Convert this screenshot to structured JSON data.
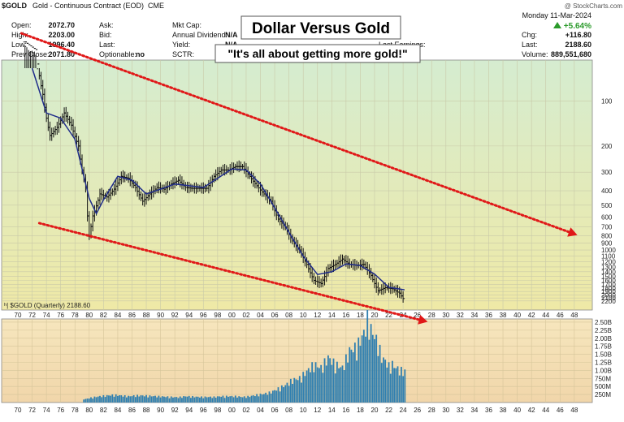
{
  "header": {
    "symbol": "$GOLD",
    "description": "Gold - Continuous Contract (EOD)",
    "exchange": "CME",
    "watermark": "@ StockCharts.com",
    "date_line": "Monday   11-Mar-2024",
    "change_pct": "+5.64%",
    "fields_left": [
      {
        "label": "Open:",
        "value": "2072.70"
      },
      {
        "label": "High:",
        "value": "2203.00"
      },
      {
        "label": "Low:",
        "value": "1996.40"
      },
      {
        "label": "Prev Close:",
        "value": "2071.80"
      }
    ],
    "fields_mid": [
      {
        "label": "Ask:",
        "value": ""
      },
      {
        "label": "Bid:",
        "value": ""
      },
      {
        "label": "Last:",
        "value": ""
      },
      {
        "label": "Optionable:",
        "value": "no"
      }
    ],
    "fields_mid2": [
      {
        "label": "Mkt Cap:",
        "value": ""
      },
      {
        "label": "Annual Dividend:",
        "value": "N/A"
      },
      {
        "label": "Yield:",
        "value": "N/A"
      },
      {
        "label": "SCTR:",
        "value": ""
      }
    ],
    "last_earnings_label": "Last Earnings:",
    "fields_right": [
      {
        "label": "Chg:",
        "value": "+116.80"
      },
      {
        "label": "Last:",
        "value": "2188.60"
      },
      {
        "label": "Volume:",
        "value": "889,551,680"
      }
    ]
  },
  "title_box": "Dollar Versus Gold",
  "subtitle_box": "\"It's all about getting more gold!\"",
  "legend_label": "$GOLD (Quarterly) 2188.60",
  "colors": {
    "price_bg_top": "#d5ecd0",
    "price_bg_bottom": "#efe9a6",
    "volume_bg_top": "#f6e6bd",
    "volume_bg_bottom": "#f1d6aa",
    "price_bar": "#111111",
    "moving_average": "#1f2c8a",
    "volume_bar": "#2f7fb0",
    "trend_arrow": "#e01818",
    "up_arrow": "#2a9a2a"
  },
  "chart_data": [
    {
      "type": "bar",
      "subtype": "ohlc-quarterly",
      "scale": "inverted-log",
      "legend": "$GOLD (Quarterly) 2188.60",
      "x_ticks": [
        "70",
        "72",
        "74",
        "76",
        "78",
        "80",
        "82",
        "84",
        "86",
        "88",
        "90",
        "92",
        "94",
        "96",
        "98",
        "00",
        "02",
        "04",
        "06",
        "08",
        "10",
        "12",
        "14",
        "16",
        "18",
        "20",
        "22",
        "24",
        "26",
        "28",
        "30",
        "32",
        "34",
        "36",
        "38",
        "40",
        "42",
        "44",
        "46",
        "48"
      ],
      "y_ticks": [
        100,
        200,
        300,
        400,
        500,
        600,
        700,
        800,
        900,
        1000,
        1100,
        1200,
        1300,
        1400,
        1500,
        1600,
        1700,
        1800,
        1900,
        2000,
        2100,
        2200
      ],
      "ylim": [
        60,
        2260
      ],
      "grid": true,
      "price_points": [
        {
          "x": 1971.0,
          "y": 40
        },
        {
          "x": 1972.5,
          "y": 45
        },
        {
          "x": 1973.5,
          "y": 90
        },
        {
          "x": 1974.5,
          "y": 170
        },
        {
          "x": 1975.5,
          "y": 150
        },
        {
          "x": 1976.5,
          "y": 120
        },
        {
          "x": 1977.5,
          "y": 145
        },
        {
          "x": 1978.5,
          "y": 200
        },
        {
          "x": 1979.5,
          "y": 380
        },
        {
          "x": 1980.0,
          "y": 800
        },
        {
          "x": 1980.5,
          "y": 590
        },
        {
          "x": 1981.5,
          "y": 420
        },
        {
          "x": 1982.5,
          "y": 440
        },
        {
          "x": 1983.5,
          "y": 390
        },
        {
          "x": 1984.5,
          "y": 320
        },
        {
          "x": 1985.5,
          "y": 330
        },
        {
          "x": 1986.5,
          "y": 380
        },
        {
          "x": 1987.5,
          "y": 470
        },
        {
          "x": 1988.5,
          "y": 420
        },
        {
          "x": 1989.5,
          "y": 380
        },
        {
          "x": 1990.5,
          "y": 390
        },
        {
          "x": 1991.5,
          "y": 360
        },
        {
          "x": 1992.5,
          "y": 340
        },
        {
          "x": 1993.5,
          "y": 380
        },
        {
          "x": 1994.5,
          "y": 385
        },
        {
          "x": 1995.5,
          "y": 385
        },
        {
          "x": 1996.5,
          "y": 385
        },
        {
          "x": 1997.5,
          "y": 320
        },
        {
          "x": 1998.5,
          "y": 290
        },
        {
          "x": 1999.5,
          "y": 290
        },
        {
          "x": 2000.5,
          "y": 275
        },
        {
          "x": 2001.5,
          "y": 275
        },
        {
          "x": 2002.5,
          "y": 320
        },
        {
          "x": 2003.5,
          "y": 370
        },
        {
          "x": 2004.5,
          "y": 420
        },
        {
          "x": 2005.5,
          "y": 470
        },
        {
          "x": 2006.5,
          "y": 620
        },
        {
          "x": 2007.5,
          "y": 700
        },
        {
          "x": 2008.5,
          "y": 870
        },
        {
          "x": 2009.5,
          "y": 1000
        },
        {
          "x": 2010.5,
          "y": 1250
        },
        {
          "x": 2011.5,
          "y": 1600
        },
        {
          "x": 2012.5,
          "y": 1680
        },
        {
          "x": 2013.5,
          "y": 1330
        },
        {
          "x": 2014.5,
          "y": 1250
        },
        {
          "x": 2015.5,
          "y": 1150
        },
        {
          "x": 2016.5,
          "y": 1250
        },
        {
          "x": 2017.5,
          "y": 1270
        },
        {
          "x": 2018.5,
          "y": 1250
        },
        {
          "x": 2019.5,
          "y": 1480
        },
        {
          "x": 2020.5,
          "y": 1880
        },
        {
          "x": 2021.5,
          "y": 1790
        },
        {
          "x": 2022.5,
          "y": 1820
        },
        {
          "x": 2023.5,
          "y": 1950
        },
        {
          "x": 2024.2,
          "y": 2188.6
        }
      ],
      "moving_average": [
        {
          "x": 1972.0,
          "y": 60
        },
        {
          "x": 1974.0,
          "y": 120
        },
        {
          "x": 1976.0,
          "y": 130
        },
        {
          "x": 1978.0,
          "y": 180
        },
        {
          "x": 1980.0,
          "y": 450
        },
        {
          "x": 1981.0,
          "y": 570
        },
        {
          "x": 1982.0,
          "y": 460
        },
        {
          "x": 1984.0,
          "y": 320
        },
        {
          "x": 1986.0,
          "y": 340
        },
        {
          "x": 1988.0,
          "y": 420
        },
        {
          "x": 1990.0,
          "y": 390
        },
        {
          "x": 1992.0,
          "y": 360
        },
        {
          "x": 1994.0,
          "y": 370
        },
        {
          "x": 1996.0,
          "y": 380
        },
        {
          "x": 1998.0,
          "y": 330
        },
        {
          "x": 2000.0,
          "y": 285
        },
        {
          "x": 2002.0,
          "y": 290
        },
        {
          "x": 2004.0,
          "y": 360
        },
        {
          "x": 2006.0,
          "y": 520
        },
        {
          "x": 2008.0,
          "y": 760
        },
        {
          "x": 2010.0,
          "y": 1100
        },
        {
          "x": 2012.0,
          "y": 1460
        },
        {
          "x": 2014.0,
          "y": 1400
        },
        {
          "x": 2016.0,
          "y": 1240
        },
        {
          "x": 2018.0,
          "y": 1270
        },
        {
          "x": 2020.0,
          "y": 1450
        },
        {
          "x": 2022.0,
          "y": 1780
        },
        {
          "x": 2024.2,
          "y": 1850
        }
      ],
      "trend_lines": [
        {
          "from": {
            "x": 1970.5,
            "y": 35
          },
          "to": {
            "x": 2048,
            "y": 780
          }
        },
        {
          "from": {
            "x": 1973.0,
            "y": 660
          },
          "to": {
            "x": 2027,
            "y": 3000
          }
        }
      ]
    },
    {
      "type": "bar",
      "subtype": "volume",
      "y_ticks": [
        "250M",
        "500M",
        "750M",
        "1.00B",
        "1.25B",
        "1.50B",
        "1.75B",
        "2.00B",
        "2.25B",
        "2.50B"
      ],
      "ylim": [
        0,
        2.55
      ],
      "unit": "billions",
      "x_ticks": [
        "70",
        "72",
        "74",
        "76",
        "78",
        "80",
        "82",
        "84",
        "86",
        "88",
        "90",
        "92",
        "94",
        "96",
        "98",
        "00",
        "02",
        "04",
        "06",
        "08",
        "10",
        "12",
        "14",
        "16",
        "18",
        "20",
        "22",
        "24",
        "26",
        "28",
        "30",
        "32",
        "34",
        "36",
        "38",
        "40",
        "42",
        "44",
        "46",
        "48"
      ],
      "volume_points": [
        {
          "x": 1979.5,
          "y": 0.1
        },
        {
          "x": 1980.5,
          "y": 0.15
        },
        {
          "x": 1981.5,
          "y": 0.18
        },
        {
          "x": 1982.5,
          "y": 0.2
        },
        {
          "x": 1983.5,
          "y": 0.22
        },
        {
          "x": 1984.5,
          "y": 0.2
        },
        {
          "x": 1985.5,
          "y": 0.18
        },
        {
          "x": 1986.5,
          "y": 0.2
        },
        {
          "x": 1987.5,
          "y": 0.2
        },
        {
          "x": 1988.5,
          "y": 0.19
        },
        {
          "x": 1989.5,
          "y": 0.18
        },
        {
          "x": 1990.5,
          "y": 0.17
        },
        {
          "x": 1991.5,
          "y": 0.16
        },
        {
          "x": 1992.5,
          "y": 0.15
        },
        {
          "x": 1993.5,
          "y": 0.18
        },
        {
          "x": 1994.5,
          "y": 0.17
        },
        {
          "x": 1995.5,
          "y": 0.16
        },
        {
          "x": 1996.5,
          "y": 0.16
        },
        {
          "x": 1997.5,
          "y": 0.16
        },
        {
          "x": 1998.5,
          "y": 0.18
        },
        {
          "x": 1999.5,
          "y": 0.18
        },
        {
          "x": 2000.5,
          "y": 0.18
        },
        {
          "x": 2001.5,
          "y": 0.16
        },
        {
          "x": 2002.5,
          "y": 0.18
        },
        {
          "x": 2003.5,
          "y": 0.22
        },
        {
          "x": 2004.5,
          "y": 0.25
        },
        {
          "x": 2005.5,
          "y": 0.3
        },
        {
          "x": 2006.5,
          "y": 0.4
        },
        {
          "x": 2007.5,
          "y": 0.5
        },
        {
          "x": 2008.5,
          "y": 0.65
        },
        {
          "x": 2009.5,
          "y": 0.7
        },
        {
          "x": 2010.5,
          "y": 0.9
        },
        {
          "x": 2011.5,
          "y": 1.1
        },
        {
          "x": 2012.5,
          "y": 1.0
        },
        {
          "x": 2013.5,
          "y": 1.3
        },
        {
          "x": 2014.5,
          "y": 1.1
        },
        {
          "x": 2015.5,
          "y": 1.0
        },
        {
          "x": 2016.5,
          "y": 1.5
        },
        {
          "x": 2017.5,
          "y": 1.6
        },
        {
          "x": 2018.0,
          "y": 1.8
        },
        {
          "x": 2018.5,
          "y": 2.0
        },
        {
          "x": 2019.0,
          "y": 2.4
        },
        {
          "x": 2019.5,
          "y": 2.1
        },
        {
          "x": 2020.0,
          "y": 1.9
        },
        {
          "x": 2020.5,
          "y": 1.7
        },
        {
          "x": 2021.0,
          "y": 1.3
        },
        {
          "x": 2021.5,
          "y": 1.2
        },
        {
          "x": 2022.0,
          "y": 1.05
        },
        {
          "x": 2022.5,
          "y": 1.1
        },
        {
          "x": 2023.0,
          "y": 1.0
        },
        {
          "x": 2023.5,
          "y": 0.95
        },
        {
          "x": 2024.0,
          "y": 0.9
        }
      ]
    }
  ]
}
